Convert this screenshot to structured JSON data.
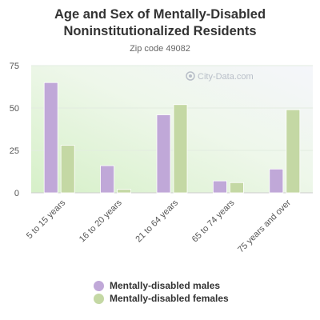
{
  "chart_data": {
    "type": "bar",
    "title": "Age and Sex of Mentally-Disabled Noninstitutionalized Residents",
    "subtitle": "Zip code 49082",
    "categories": [
      "5 to 15 years",
      "16 to 20 years",
      "21 to 64 years",
      "65 to 74 years",
      "75 years and over"
    ],
    "series": [
      {
        "name": "Mentally-disabled males",
        "values": [
          65,
          16,
          46,
          7,
          14
        ],
        "color": "#c0a8d8"
      },
      {
        "name": "Mentally-disabled females",
        "values": [
          28,
          2,
          52,
          6,
          49
        ],
        "color": "#c4d8a4"
      }
    ],
    "yticks": [
      0,
      25,
      50,
      75
    ],
    "ylim": [
      0,
      75
    ],
    "grid": true,
    "legend_position": "bottom",
    "watermark": "City-Data.com"
  }
}
